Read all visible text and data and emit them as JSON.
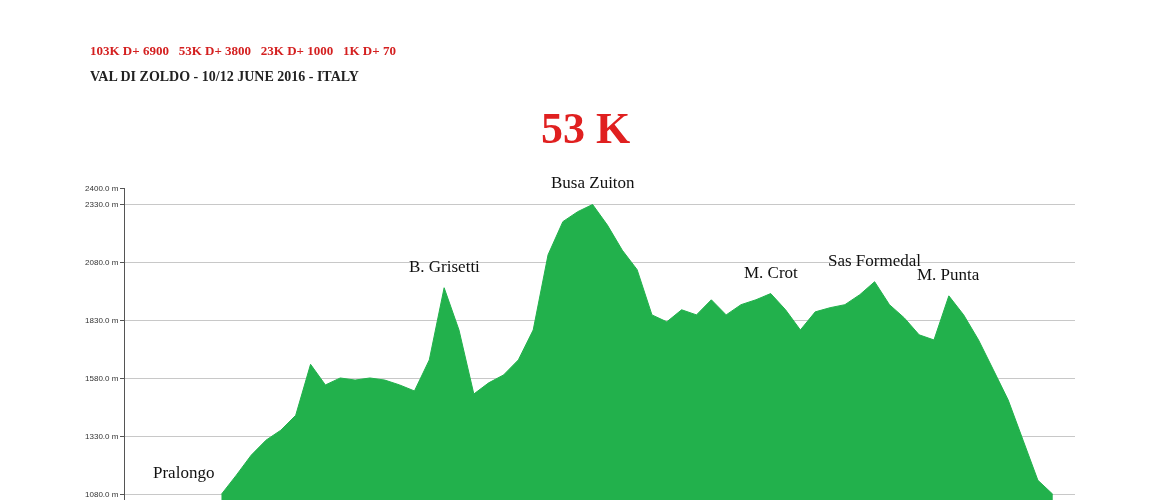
{
  "chart_data": {
    "type": "area",
    "title": "53 K",
    "subtitle": "VAL DI ZOLDO - 10/12 JUNE 2016 - ITALY",
    "categories": [
      null,
      null,
      null,
      null,
      null,
      null,
      null,
      null,
      null,
      null,
      null,
      null,
      null,
      null,
      null,
      null,
      null,
      null,
      null,
      null,
      null,
      null,
      null,
      null,
      null,
      null,
      null,
      null,
      null,
      null,
      null,
      null,
      null,
      null,
      null,
      null,
      null,
      null,
      null,
      null,
      null,
      null,
      null,
      null,
      null,
      null,
      null,
      null,
      null,
      null,
      null,
      null,
      null,
      null,
      null,
      null,
      null,
      null,
      null,
      null,
      null,
      null,
      null,
      null
    ],
    "series": [
      {
        "color": "#22b14c",
        "values": [
          null,
          null,
          null,
          null,
          null,
          null,
          1080,
          1162,
          1248,
          1313,
          1356,
          1420,
          1640,
          1551,
          1581,
          1572,
          1581,
          1572,
          1551,
          1525,
          1659,
          1970,
          1788,
          1512,
          1560,
          1594,
          1659,
          1788,
          2112,
          2255,
          2298,
          2329,
          2240,
          2132,
          2048,
          1853,
          1823,
          1875,
          1853,
          1918,
          1853,
          1897,
          1918,
          1945,
          1875,
          1788,
          1866,
          1884,
          1897,
          1940,
          1996,
          1897,
          1840,
          1767,
          1745,
          1935,
          1853,
          1745,
          1616,
          1486,
          1313,
          1140,
          1080,
          null
        ]
      }
    ],
    "ylim": [
      1055,
      2400
    ],
    "yticks": [
      {
        "value": 1080,
        "label": "1080.0 m"
      },
      {
        "value": 1330,
        "label": "1330.0 m"
      },
      {
        "value": 1580,
        "label": "1580.0 m"
      },
      {
        "value": 1830,
        "label": "1830.0 m"
      },
      {
        "value": 2080,
        "label": "2080.0 m"
      },
      {
        "value": 2330,
        "label": "2330.0 m"
      },
      {
        "value": 2400,
        "label": "2400.0 m"
      }
    ],
    "grid": "y",
    "tick_labels": "y",
    "annotations": [
      "103K D+ 6900   53K D+ 3800   23K D+ 1000   1K D+ 70",
      "Pralongo",
      {
        "text": "B. Grisetti",
        "y": 1970
      },
      {
        "text": "Busa Zuiton",
        "y": 2329
      },
      {
        "text": "M. Crot",
        "y": 1945
      },
      {
        "text": "Sas Formedal",
        "y": 1996
      },
      {
        "text": "M. Punta",
        "y": 1935
      }
    ]
  }
}
